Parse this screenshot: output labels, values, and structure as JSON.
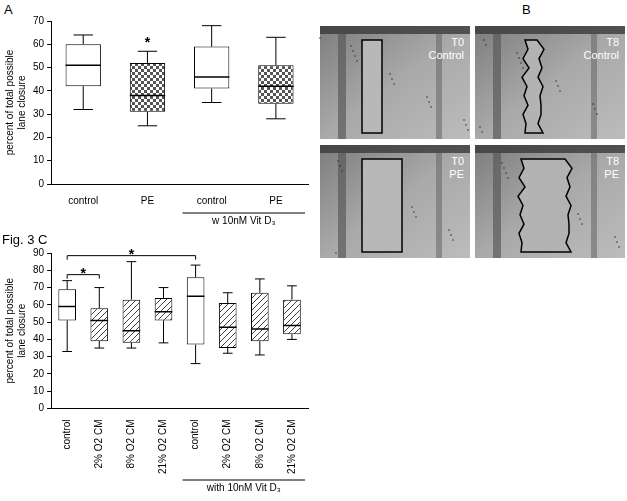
{
  "chart_data": [
    {
      "panel": "A",
      "type": "boxplot",
      "ylabel": [
        "percent of total possible",
        "lane closure"
      ],
      "categories": [
        "control",
        "PE",
        "control",
        "PE"
      ],
      "boxes": [
        {
          "min": 32,
          "q1": 42,
          "median": 51,
          "q3": 60,
          "max": 64
        },
        {
          "min": 25,
          "q1": 31,
          "median": 38,
          "q3": 52,
          "max": 57
        },
        {
          "min": 35,
          "q1": 41,
          "median": 46,
          "q3": 59,
          "max": 68
        },
        {
          "min": 28,
          "q1": 34.5,
          "median": 42,
          "q3": 51,
          "max": 63
        }
      ],
      "colors": [
        "#ffffff",
        "#555555",
        "#ffffff",
        "#555555"
      ],
      "ylim": [
        0,
        70
      ],
      "yticks": [
        0,
        10,
        20,
        30,
        40,
        50,
        60,
        70
      ],
      "grid": false,
      "group": {
        "text": "w 10nM Vit D₃",
        "from": 2,
        "to": 3
      },
      "annotations": [
        {
          "category": 1,
          "text": "*"
        }
      ]
    },
    {
      "panel": "Fig. 3 C",
      "type": "boxplot",
      "ylabel": [
        "percent of total possible",
        "lane closure"
      ],
      "categories": [
        "control",
        "2% O2 CM",
        "8% O2 CM",
        "21% O2 CM",
        "control",
        "2% O2 CM",
        "8% O2 CM",
        "21% O2 CM"
      ],
      "boxes": [
        {
          "min": 33,
          "q1": 51,
          "median": 59,
          "q3": 69,
          "max": 74
        },
        {
          "min": 35,
          "q1": 39,
          "median": 51,
          "q3": 58,
          "max": 70
        },
        {
          "min": 35,
          "q1": 38,
          "median": 45,
          "q3": 63,
          "max": 85
        },
        {
          "min": 38,
          "q1": 51,
          "median": 56,
          "q3": 64,
          "max": 70
        },
        {
          "min": 26,
          "q1": 37,
          "median": 65,
          "q3": 76,
          "max": 83
        },
        {
          "min": 32,
          "q1": 35,
          "median": 47,
          "q3": 61,
          "max": 67
        },
        {
          "min": 31,
          "q1": 39,
          "median": 46,
          "q3": 67,
          "max": 75
        },
        {
          "min": 40,
          "q1": 43,
          "median": 48,
          "q3": 63,
          "max": 71
        }
      ],
      "colors": [
        "#ffffff",
        "#444444",
        "#444444",
        "#444444",
        "#ffffff",
        "#444444",
        "#444444",
        "#444444"
      ],
      "ylim": [
        0,
        90
      ],
      "yticks": [
        0,
        10,
        20,
        30,
        40,
        50,
        60,
        70,
        80,
        90
      ],
      "grid": false,
      "group": {
        "text": "with 10nM Vit D₃",
        "from": 4,
        "to": 7
      },
      "significance": [
        {
          "from": 0,
          "to": 1,
          "text": "*"
        },
        {
          "from": 0,
          "to": 4,
          "text": "*"
        }
      ]
    }
  ],
  "images": {
    "panel": "B",
    "tiles": [
      {
        "lines": [
          "T0",
          "Control"
        ]
      },
      {
        "lines": [
          "T8",
          "Control"
        ]
      },
      {
        "lines": [
          "T0",
          "PE"
        ]
      },
      {
        "lines": [
          "T8",
          "PE"
        ]
      }
    ]
  }
}
